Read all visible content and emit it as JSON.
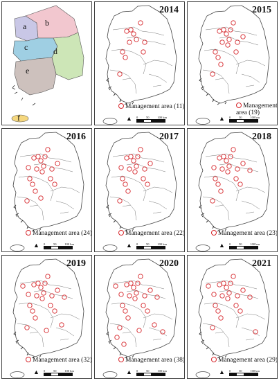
{
  "region_map": {
    "labels": [
      "a",
      "b",
      "c",
      "d",
      "e",
      "f"
    ],
    "colors": {
      "a": "#c9c7e6",
      "b": "#f2c7cf",
      "c": "#9fcfe3",
      "d": "#cde6b7",
      "e": "#cdc1bd",
      "f": "#f5d77e"
    }
  },
  "panels": [
    {
      "year": "2014",
      "legend": "Management area (11)"
    },
    {
      "year": "2015",
      "legend": "Management area (19)",
      "wrap": true
    },
    {
      "year": "2016",
      "legend": "Management area (24)"
    },
    {
      "year": "2017",
      "legend": "Management area (22)"
    },
    {
      "year": "2018",
      "legend": "Management area (23)"
    },
    {
      "year": "2019",
      "legend": "Management area (32)"
    },
    {
      "year": "2020",
      "legend": "Management area (38)"
    },
    {
      "year": "2021",
      "legend": "Management area (29)"
    }
  ],
  "scale": {
    "labels": [
      "0",
      "50",
      "100 km"
    ]
  },
  "north_symbol": "north-arrow-icon",
  "marker_color": "#d6262b"
}
